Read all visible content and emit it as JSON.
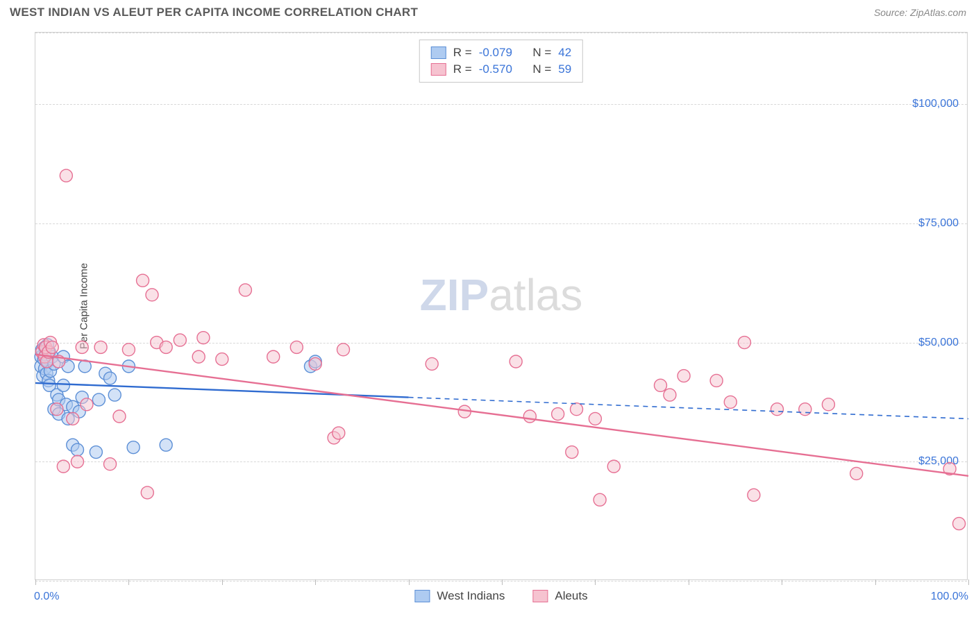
{
  "title": "WEST INDIAN VS ALEUT PER CAPITA INCOME CORRELATION CHART",
  "source": "Source: ZipAtlas.com",
  "ylabel": "Per Capita Income",
  "watermark_bold": "ZIP",
  "watermark_rest": "atlas",
  "chart": {
    "type": "scatter",
    "xlim": [
      0,
      100
    ],
    "ylim": [
      0,
      115000
    ],
    "xtick_positions": [
      0,
      10,
      20,
      30,
      40,
      50,
      60,
      70,
      80,
      90,
      100
    ],
    "xtick_labels": {
      "start": "0.0%",
      "end": "100.0%"
    },
    "ytick_positions": [
      25000,
      50000,
      75000,
      100000
    ],
    "ytick_labels": [
      "$25,000",
      "$50,000",
      "$75,000",
      "$100,000"
    ],
    "grid_lines": [
      0,
      25000,
      50000,
      75000,
      100000,
      115000
    ],
    "grid_color": "#d8d8d8",
    "background_color": "#ffffff",
    "label_color": "#3a74d8",
    "marker_radius": 9,
    "marker_stroke_width": 1.4,
    "trend_line_width": 2.4,
    "series": [
      {
        "name": "West Indians",
        "fill": "#aecbf1",
        "stroke": "#5c8fd6",
        "fill_opacity": 0.55,
        "r_value": "-0.079",
        "n_value": "42",
        "trend": {
          "x1": 0,
          "y1": 41500,
          "x2": 40,
          "y2": 38500,
          "dash_x2": 100,
          "dash_y2": 34000,
          "color": "#2f6bd0"
        },
        "points": [
          [
            0.6,
            47000
          ],
          [
            0.6,
            45000
          ],
          [
            0.7,
            48500
          ],
          [
            0.8,
            43000
          ],
          [
            0.9,
            46500
          ],
          [
            1.0,
            49000
          ],
          [
            1.0,
            44500
          ],
          [
            1.1,
            47500
          ],
          [
            1.2,
            43500
          ],
          [
            1.3,
            46000
          ],
          [
            1.3,
            49500
          ],
          [
            1.4,
            42000
          ],
          [
            1.5,
            41000
          ],
          [
            1.5,
            48000
          ],
          [
            1.6,
            44000
          ],
          [
            1.8,
            47000
          ],
          [
            2.0,
            45500
          ],
          [
            2.0,
            36000
          ],
          [
            2.3,
            39000
          ],
          [
            2.5,
            38000
          ],
          [
            2.5,
            35000
          ],
          [
            3.0,
            47000
          ],
          [
            3.0,
            41000
          ],
          [
            3.3,
            37000
          ],
          [
            3.5,
            34000
          ],
          [
            3.5,
            45000
          ],
          [
            4.0,
            28500
          ],
          [
            4.0,
            36500
          ],
          [
            4.5,
            27500
          ],
          [
            4.7,
            35500
          ],
          [
            5.0,
            38500
          ],
          [
            5.3,
            45000
          ],
          [
            6.5,
            27000
          ],
          [
            6.8,
            38000
          ],
          [
            7.5,
            43500
          ],
          [
            8.0,
            42500
          ],
          [
            8.5,
            39000
          ],
          [
            10.0,
            45000
          ],
          [
            10.5,
            28000
          ],
          [
            14.0,
            28500
          ],
          [
            29.5,
            45000
          ],
          [
            30.0,
            46000
          ]
        ]
      },
      {
        "name": "Aleuts",
        "fill": "#f6c3d0",
        "stroke": "#e66f93",
        "fill_opacity": 0.5,
        "r_value": "-0.570",
        "n_value": "59",
        "trend": {
          "x1": 0,
          "y1": 47500,
          "x2": 100,
          "y2": 22000,
          "dash_x2": 100,
          "dash_y2": 22000,
          "color": "#e66f93"
        },
        "points": [
          [
            0.7,
            48000
          ],
          [
            0.9,
            49500
          ],
          [
            1.0,
            47000
          ],
          [
            1.1,
            49000
          ],
          [
            1.2,
            46000
          ],
          [
            1.4,
            48000
          ],
          [
            1.6,
            50000
          ],
          [
            1.8,
            49000
          ],
          [
            2.3,
            36000
          ],
          [
            2.5,
            46000
          ],
          [
            3.0,
            24000
          ],
          [
            3.3,
            85000
          ],
          [
            4.0,
            34000
          ],
          [
            4.5,
            25000
          ],
          [
            5.0,
            49000
          ],
          [
            5.5,
            37000
          ],
          [
            7.0,
            49000
          ],
          [
            8.0,
            24500
          ],
          [
            9.0,
            34500
          ],
          [
            10.0,
            48500
          ],
          [
            11.5,
            63000
          ],
          [
            12.0,
            18500
          ],
          [
            12.5,
            60000
          ],
          [
            13.0,
            50000
          ],
          [
            14.0,
            49000
          ],
          [
            15.5,
            50500
          ],
          [
            17.5,
            47000
          ],
          [
            18.0,
            51000
          ],
          [
            20.0,
            46500
          ],
          [
            22.5,
            61000
          ],
          [
            25.5,
            47000
          ],
          [
            28.0,
            49000
          ],
          [
            30.0,
            45500
          ],
          [
            32.0,
            30000
          ],
          [
            32.5,
            31000
          ],
          [
            33.0,
            48500
          ],
          [
            42.5,
            45500
          ],
          [
            46.0,
            35500
          ],
          [
            51.5,
            46000
          ],
          [
            53.0,
            34500
          ],
          [
            56.0,
            35000
          ],
          [
            57.5,
            27000
          ],
          [
            58.0,
            36000
          ],
          [
            60.0,
            34000
          ],
          [
            60.5,
            17000
          ],
          [
            62.0,
            24000
          ],
          [
            67.0,
            41000
          ],
          [
            68.0,
            39000
          ],
          [
            69.5,
            43000
          ],
          [
            73.0,
            42000
          ],
          [
            74.5,
            37500
          ],
          [
            76.0,
            50000
          ],
          [
            77.0,
            18000
          ],
          [
            79.5,
            36000
          ],
          [
            82.5,
            36000
          ],
          [
            85.0,
            37000
          ],
          [
            88.0,
            22500
          ],
          [
            98.0,
            23500
          ],
          [
            99.0,
            12000
          ]
        ]
      }
    ]
  },
  "legend": {
    "stats_labels": {
      "r": "R =",
      "n": "N ="
    },
    "bottom": [
      "West Indians",
      "Aleuts"
    ]
  }
}
